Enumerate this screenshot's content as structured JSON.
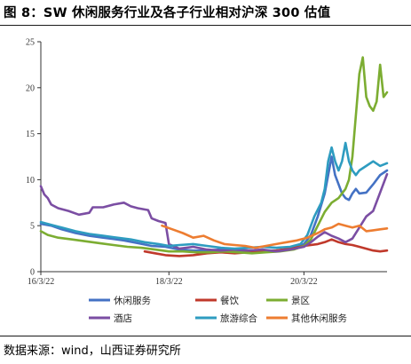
{
  "figure": {
    "title": "图 8：SW 休闲服务行业及各子行业相对沪深 300 估值",
    "source_label": "数据来源：",
    "source_text": "wind，山西证券研究所"
  },
  "chart_data": {
    "type": "line",
    "title": "",
    "xlabel": "",
    "ylabel": "",
    "ylim": [
      0,
      25
    ],
    "yticks": [
      0,
      5,
      10,
      15,
      20,
      25
    ],
    "xlim": [
      0,
      100
    ],
    "xticks": [
      {
        "x": 0,
        "label": "16/3/22"
      },
      {
        "x": 37,
        "label": "18/3/22"
      },
      {
        "x": 76,
        "label": "20/3/22"
      }
    ],
    "grid": false,
    "legend_position": "bottom",
    "series": [
      {
        "name": "休闲服务",
        "color": "#4472c4",
        "points": [
          [
            0,
            5.2
          ],
          [
            3,
            5.0
          ],
          [
            6,
            4.6
          ],
          [
            10,
            4.2
          ],
          [
            14,
            3.9
          ],
          [
            18,
            3.7
          ],
          [
            20,
            3.6
          ],
          [
            24,
            3.4
          ],
          [
            28,
            3.1
          ],
          [
            32,
            2.8
          ],
          [
            36,
            2.7
          ],
          [
            40,
            2.4
          ],
          [
            44,
            2.3
          ],
          [
            48,
            2.3
          ],
          [
            52,
            2.4
          ],
          [
            56,
            2.3
          ],
          [
            60,
            2.2
          ],
          [
            64,
            2.3
          ],
          [
            68,
            2.3
          ],
          [
            72,
            2.5
          ],
          [
            74,
            2.7
          ],
          [
            76,
            3.0
          ],
          [
            78,
            4.0
          ],
          [
            80,
            6.0
          ],
          [
            82,
            8.5
          ],
          [
            83,
            10.5
          ],
          [
            84,
            12.5
          ],
          [
            85,
            10.5
          ],
          [
            86,
            9.5
          ],
          [
            87,
            8.5
          ],
          [
            88,
            8.0
          ],
          [
            89,
            7.8
          ],
          [
            90,
            8.5
          ],
          [
            91,
            9.0
          ],
          [
            92,
            8.5
          ],
          [
            94,
            8.6
          ],
          [
            96,
            9.5
          ],
          [
            98,
            10.5
          ],
          [
            100,
            11.0
          ]
        ]
      },
      {
        "name": "餐饮",
        "color": "#c0392b",
        "points": [
          [
            30,
            2.2
          ],
          [
            33,
            2.0
          ],
          [
            36,
            1.8
          ],
          [
            40,
            1.7
          ],
          [
            44,
            1.8
          ],
          [
            48,
            2.0
          ],
          [
            52,
            2.1
          ],
          [
            56,
            2.0
          ],
          [
            60,
            2.1
          ],
          [
            64,
            2.2
          ],
          [
            68,
            2.3
          ],
          [
            72,
            2.5
          ],
          [
            76,
            2.8
          ],
          [
            80,
            3.0
          ],
          [
            82,
            3.2
          ],
          [
            84,
            3.5
          ],
          [
            86,
            3.2
          ],
          [
            88,
            3.0
          ],
          [
            90,
            2.9
          ],
          [
            92,
            2.7
          ],
          [
            94,
            2.5
          ],
          [
            96,
            2.3
          ],
          [
            98,
            2.2
          ],
          [
            100,
            2.3
          ]
        ]
      },
      {
        "name": "景区",
        "color": "#7cad32",
        "points": [
          [
            0,
            4.4
          ],
          [
            2,
            4.0
          ],
          [
            5,
            3.7
          ],
          [
            9,
            3.5
          ],
          [
            13,
            3.3
          ],
          [
            17,
            3.1
          ],
          [
            21,
            2.9
          ],
          [
            25,
            2.7
          ],
          [
            29,
            2.6
          ],
          [
            33,
            2.4
          ],
          [
            37,
            2.2
          ],
          [
            41,
            2.2
          ],
          [
            45,
            2.1
          ],
          [
            49,
            2.1
          ],
          [
            53,
            2.2
          ],
          [
            57,
            2.1
          ],
          [
            61,
            2.0
          ],
          [
            65,
            2.1
          ],
          [
            69,
            2.2
          ],
          [
            73,
            2.4
          ],
          [
            76,
            2.8
          ],
          [
            78,
            3.5
          ],
          [
            80,
            5.0
          ],
          [
            82,
            6.5
          ],
          [
            84,
            7.5
          ],
          [
            86,
            8.0
          ],
          [
            87,
            8.5
          ],
          [
            88,
            9.0
          ],
          [
            89,
            10.0
          ],
          [
            90,
            12.5
          ],
          [
            91,
            17.0
          ],
          [
            92,
            21.5
          ],
          [
            93,
            23.3
          ],
          [
            94,
            19.0
          ],
          [
            95,
            18.0
          ],
          [
            96,
            17.5
          ],
          [
            97,
            18.5
          ],
          [
            98,
            22.5
          ],
          [
            99,
            19.0
          ],
          [
            100,
            19.5
          ]
        ]
      },
      {
        "name": "酒店",
        "color": "#7b4ea3",
        "points": [
          [
            0,
            9.3
          ],
          [
            1,
            8.4
          ],
          [
            2,
            8.0
          ],
          [
            3,
            7.3
          ],
          [
            5,
            6.9
          ],
          [
            8,
            6.6
          ],
          [
            11,
            6.2
          ],
          [
            14,
            6.4
          ],
          [
            15,
            7.0
          ],
          [
            18,
            7.0
          ],
          [
            21,
            7.3
          ],
          [
            24,
            7.5
          ],
          [
            26,
            7.1
          ],
          [
            28,
            6.9
          ],
          [
            31,
            6.7
          ],
          [
            32,
            5.8
          ],
          [
            34,
            5.5
          ],
          [
            36,
            5.3
          ],
          [
            37,
            3.0
          ],
          [
            40,
            2.5
          ],
          [
            44,
            2.7
          ],
          [
            48,
            2.4
          ],
          [
            52,
            2.3
          ],
          [
            56,
            2.4
          ],
          [
            60,
            2.3
          ],
          [
            64,
            2.4
          ],
          [
            68,
            2.2
          ],
          [
            72,
            2.4
          ],
          [
            76,
            2.7
          ],
          [
            78,
            3.2
          ],
          [
            80,
            3.8
          ],
          [
            82,
            4.3
          ],
          [
            84,
            3.9
          ],
          [
            86,
            3.6
          ],
          [
            88,
            3.2
          ],
          [
            90,
            3.6
          ],
          [
            92,
            4.8
          ],
          [
            94,
            6.0
          ],
          [
            96,
            6.6
          ],
          [
            98,
            8.6
          ],
          [
            100,
            10.6
          ]
        ]
      },
      {
        "name": "旅游综合",
        "color": "#2e9cc0",
        "points": [
          [
            0,
            5.4
          ],
          [
            3,
            5.1
          ],
          [
            6,
            4.8
          ],
          [
            10,
            4.4
          ],
          [
            14,
            4.1
          ],
          [
            18,
            3.9
          ],
          [
            22,
            3.7
          ],
          [
            26,
            3.5
          ],
          [
            30,
            3.2
          ],
          [
            34,
            3.0
          ],
          [
            37,
            2.8
          ],
          [
            40,
            2.9
          ],
          [
            44,
            3.0
          ],
          [
            48,
            2.8
          ],
          [
            52,
            2.6
          ],
          [
            56,
            2.5
          ],
          [
            60,
            2.6
          ],
          [
            64,
            2.7
          ],
          [
            68,
            2.6
          ],
          [
            72,
            2.7
          ],
          [
            75,
            3.0
          ],
          [
            77,
            4.0
          ],
          [
            79,
            6.0
          ],
          [
            81,
            7.5
          ],
          [
            82,
            9.0
          ],
          [
            83,
            12.0
          ],
          [
            84,
            13.5
          ],
          [
            85,
            12.0
          ],
          [
            86,
            11.0
          ],
          [
            87,
            12.0
          ],
          [
            88,
            14.0
          ],
          [
            89,
            12.0
          ],
          [
            90,
            11.0
          ],
          [
            91,
            10.5
          ],
          [
            92,
            11.0
          ],
          [
            94,
            11.5
          ],
          [
            96,
            12.0
          ],
          [
            98,
            11.5
          ],
          [
            100,
            11.8
          ]
        ]
      },
      {
        "name": "其他休闲服务",
        "color": "#ed7d31",
        "points": [
          [
            35,
            5.0
          ],
          [
            38,
            4.6
          ],
          [
            41,
            4.2
          ],
          [
            44,
            3.7
          ],
          [
            47,
            3.9
          ],
          [
            50,
            3.4
          ],
          [
            53,
            3.0
          ],
          [
            56,
            2.9
          ],
          [
            59,
            2.8
          ],
          [
            62,
            2.6
          ],
          [
            65,
            2.8
          ],
          [
            68,
            3.0
          ],
          [
            71,
            3.2
          ],
          [
            74,
            3.4
          ],
          [
            77,
            3.7
          ],
          [
            80,
            4.2
          ],
          [
            82,
            4.6
          ],
          [
            84,
            4.8
          ],
          [
            86,
            5.2
          ],
          [
            88,
            5.0
          ],
          [
            90,
            4.8
          ],
          [
            92,
            5.0
          ],
          [
            94,
            4.4
          ],
          [
            96,
            4.5
          ],
          [
            98,
            4.6
          ],
          [
            100,
            4.7
          ]
        ]
      }
    ]
  }
}
